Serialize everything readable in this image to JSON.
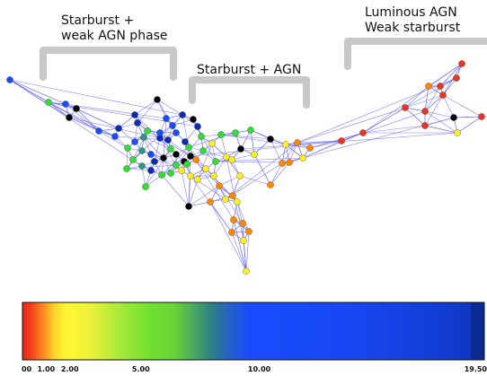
{
  "annotations": [
    {
      "id": "starburst-weak-agn",
      "lines": [
        "Starburst +",
        "weak AGN phase"
      ]
    },
    {
      "id": "starburst-agn",
      "lines": [
        "Starburst + AGN"
      ]
    },
    {
      "id": "luminous-agn-weak-starburst",
      "lines": [
        "Luminous AGN",
        "Weak starburst"
      ]
    }
  ],
  "colorbar": {
    "ticks": [
      {
        "value": 0.0,
        "label": "00"
      },
      {
        "value": 1.0,
        "label": "1.00"
      },
      {
        "value": 2.0,
        "label": "2.00"
      },
      {
        "value": 5.0,
        "label": "5.00"
      },
      {
        "value": 10.0,
        "label": "10.00"
      },
      {
        "value": 19.5,
        "label": "19.50"
      }
    ],
    "colors": {
      "red": "#ee3322",
      "orange": "#ff8800",
      "yellow": "#ffee22",
      "green": "#33dd33",
      "teal": "#2a9980",
      "blue": "#1a4cff",
      "navy": "#0a2cb0",
      "black": "#000000"
    }
  }
}
